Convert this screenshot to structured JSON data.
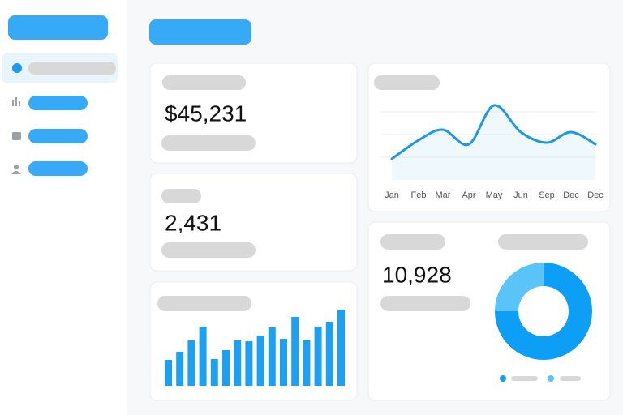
{
  "stats": [
    "$45,231",
    "2,431",
    "10,928"
  ],
  "chart_data": [
    {
      "type": "line",
      "categories": [
        "Jan",
        "Feb",
        "Mar",
        "Apr",
        "May",
        "Jun",
        "Sep",
        "Dec",
        "Dec"
      ],
      "values": [
        22,
        45,
        58,
        40,
        88,
        55,
        42,
        55,
        40
      ],
      "color": "#1e98e6"
    },
    {
      "type": "bar",
      "values": [
        32,
        42,
        56,
        73,
        33,
        44,
        56,
        55,
        62,
        72,
        58,
        85,
        56,
        73,
        79,
        94
      ],
      "color": "#1ea0f2"
    },
    {
      "type": "pie",
      "values": [
        75,
        25
      ],
      "colors": [
        "#0d9ef5",
        "#5ac3f8"
      ]
    }
  ]
}
